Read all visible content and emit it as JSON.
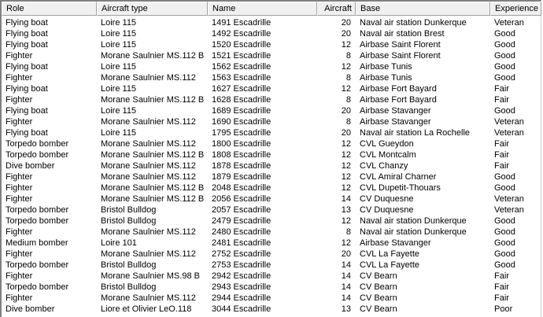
{
  "columns": [
    "Role",
    "Aircraft type",
    "Name",
    "Aircraft",
    "Base",
    "Experience"
  ],
  "rows": [
    [
      "Flying boat",
      "Loire 115",
      "1491 Escadrille",
      "20",
      "Naval air station Dunkerque",
      "Veteran"
    ],
    [
      "Flying boat",
      "Loire 115",
      "1492 Escadrille",
      "20",
      "Naval air station Brest",
      "Good"
    ],
    [
      "Flying boat",
      "Loire 115",
      "1520 Escadrille",
      "12",
      "Airbase Saint Florent",
      "Good"
    ],
    [
      "Fighter",
      "Morane Saulnier MS.112 B",
      "1521 Escadrille",
      "8",
      "Airbase Saint Florent",
      "Good"
    ],
    [
      "Flying boat",
      "Loire 115",
      "1562 Escadrille",
      "12",
      "Airbase Tunis",
      "Good"
    ],
    [
      "Fighter",
      "Morane Saulnier MS.112",
      "1563 Escadrille",
      "8",
      "Airbase Tunis",
      "Good"
    ],
    [
      "Flying boat",
      "Loire 115",
      "1627 Escadrille",
      "12",
      "Airbase Fort Bayard",
      "Fair"
    ],
    [
      "Fighter",
      "Morane Saulnier MS.112 B",
      "1628 Escadrille",
      "8",
      "Airbase Fort Bayard",
      "Fair"
    ],
    [
      "Flying boat",
      "Loire 115",
      "1689 Escadrille",
      "20",
      "Airbase Stavanger",
      "Good"
    ],
    [
      "Fighter",
      "Morane Saulnier MS.112",
      "1690 Escadrille",
      "8",
      "Airbase Stavanger",
      "Veteran"
    ],
    [
      "Flying boat",
      "Loire 115",
      "1795 Escadrille",
      "20",
      "Naval air station La Rochelle",
      "Veteran"
    ],
    [
      "Torpedo bomber",
      "Morane Saulnier MS.112",
      "1800 Escadrille",
      "12",
      "CVL Gueydon",
      "Fair"
    ],
    [
      "Torpedo bomber",
      "Morane Saulnier MS.112 B",
      "1808 Escadrille",
      "12",
      "CVL Montcalm",
      "Fair"
    ],
    [
      "Dive bomber",
      "Morane Saulnier MS.112",
      "1878 Escadrille",
      "12",
      "CVL Chanzy",
      "Fair"
    ],
    [
      "Fighter",
      "Morane Saulnier MS.112",
      "1879 Escadrille",
      "12",
      "CVL Amiral Charner",
      "Good"
    ],
    [
      "Fighter",
      "Morane Saulnier MS.112 B",
      "2048 Escadrille",
      "12",
      "CVL Dupetit-Thouars",
      "Good"
    ],
    [
      "Fighter",
      "Morane Saulnier MS.112 B",
      "2056 Escadrille",
      "14",
      "CV Duquesne",
      "Veteran"
    ],
    [
      "Torpedo bomber",
      "Bristol Bulldog",
      "2057 Escadrille",
      "13",
      "CV Duquesne",
      "Veteran"
    ],
    [
      "Torpedo bomber",
      "Bristol Bulldog",
      "2479 Escadrille",
      "12",
      "Naval air station Dunkerque",
      "Good"
    ],
    [
      "Fighter",
      "Morane Saulnier MS.112",
      "2480 Escadrille",
      "8",
      "Naval air station Dunkerque",
      "Good"
    ],
    [
      "Medium bomber",
      "Loire 101",
      "2481 Escadrille",
      "12",
      "Airbase Stavanger",
      "Good"
    ],
    [
      "Fighter",
      "Morane Saulnier MS.112",
      "2752 Escadrille",
      "20",
      "CVL La Fayette",
      "Good"
    ],
    [
      "Torpedo bomber",
      "Bristol Bulldog",
      "2753 Escadrille",
      "14",
      "CVL La Fayette",
      "Good"
    ],
    [
      "Fighter",
      "Morane Saulnier MS.98 B",
      "2942 Escadrille",
      "14",
      "CV Bearn",
      "Fair"
    ],
    [
      "Torpedo bomber",
      "Bristol Bulldog",
      "2943 Escadrille",
      "14",
      "CV Bearn",
      "Fair"
    ],
    [
      "Fighter",
      "Morane Saulnier MS.112",
      "2944 Escadrille",
      "14",
      "CV Bearn",
      "Fair"
    ],
    [
      "Dive bomber",
      "Liore et Olivier LeO.118",
      "3044 Escadrille",
      "13",
      "CV Bearn",
      "Poor"
    ]
  ]
}
